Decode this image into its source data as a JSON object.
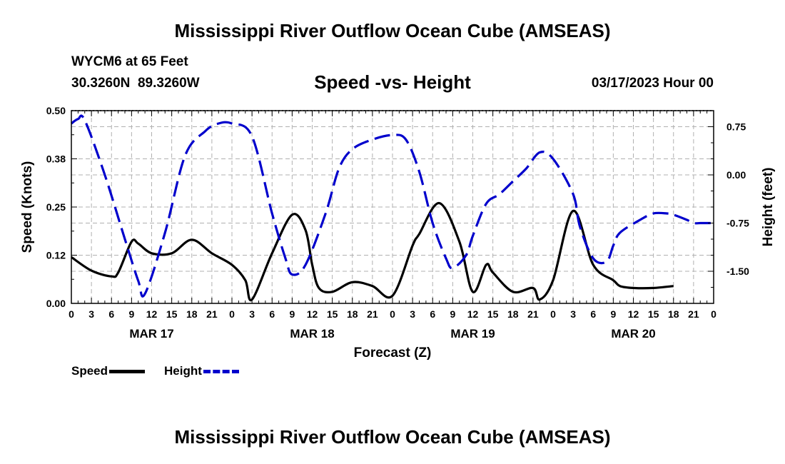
{
  "header": {
    "title": "Mississippi River Outflow Ocean Cube (AMSEAS)",
    "station": "WYCM6 at 65 Feet",
    "coords": "30.3260N  89.3260W",
    "subtitle": "Speed -vs- Height",
    "datetime": "03/17/2023 Hour 00"
  },
  "footer": {
    "title": "Mississippi River Outflow Ocean Cube (AMSEAS)"
  },
  "legend": {
    "speed": "Speed",
    "height": "Height"
  },
  "colors": {
    "speed": "#000000",
    "height": "#0000cc",
    "grid": "#b0b0b0"
  },
  "chart_data": {
    "type": "line",
    "xlabel": "Forecast (Z)",
    "ylabel_left": "Speed (Knots)",
    "ylabel_right": "Height (feet)",
    "x_range_hours": [
      0,
      96
    ],
    "ylim_left": [
      0,
      0.5
    ],
    "ylim_right": [
      -2.0,
      1.0
    ],
    "left_ticks": [
      "0.00",
      "0.12",
      "0.25",
      "0.38",
      "0.50"
    ],
    "left_tick_values": [
      0,
      0.125,
      0.25,
      0.375,
      0.5
    ],
    "right_ticks": [
      "0.75",
      "0.00",
      "-0.75",
      "-1.50"
    ],
    "right_tick_values": [
      0.75,
      0.0,
      -0.75,
      -1.5
    ],
    "x_tick_labels": [
      "0",
      "3",
      "6",
      "9",
      "12",
      "15",
      "18",
      "21",
      "0",
      "3",
      "6",
      "9",
      "12",
      "15",
      "18",
      "21",
      "0",
      "3",
      "6",
      "9",
      "12",
      "15",
      "18",
      "21",
      "0",
      "3",
      "6",
      "9",
      "12",
      "15",
      "18",
      "21",
      "0"
    ],
    "day_labels": [
      {
        "label": "MAR 17",
        "hour": 12
      },
      {
        "label": "MAR 18",
        "hour": 36
      },
      {
        "label": "MAR 19",
        "hour": 60
      },
      {
        "label": "MAR 20",
        "hour": 84
      }
    ],
    "grid": true,
    "series": [
      {
        "name": "Speed",
        "axis": "left",
        "style": "solid",
        "x": [
          0,
          3,
          6,
          7,
          9,
          10,
          12,
          15,
          18,
          21,
          24,
          26,
          27,
          30,
          33,
          35,
          36,
          37,
          39,
          42,
          45,
          48,
          51,
          52,
          55,
          58,
          60,
          62,
          63,
          66,
          69,
          70,
          72,
          75,
          78,
          81,
          82,
          84,
          87,
          90
        ],
        "values": [
          0.12,
          0.085,
          0.07,
          0.08,
          0.16,
          0.155,
          0.13,
          0.13,
          0.165,
          0.13,
          0.1,
          0.06,
          0.01,
          0.13,
          0.23,
          0.19,
          0.1,
          0.04,
          0.03,
          0.055,
          0.045,
          0.02,
          0.15,
          0.18,
          0.26,
          0.16,
          0.03,
          0.1,
          0.08,
          0.03,
          0.04,
          0.01,
          0.06,
          0.24,
          0.1,
          0.06,
          0.045,
          0.04,
          0.04,
          0.045
        ]
      },
      {
        "name": "Height",
        "axis": "right",
        "style": "dashed",
        "x": [
          0,
          1,
          2,
          5,
          8,
          10,
          11,
          14,
          17,
          20,
          22,
          24,
          27,
          30,
          32,
          33,
          35,
          38,
          40,
          42,
          45,
          48,
          50,
          52,
          54,
          56,
          57,
          59,
          60,
          62,
          64,
          66,
          68,
          70,
          72,
          75,
          76,
          78,
          80,
          81,
          82,
          85,
          87,
          89,
          90,
          92,
          93,
          94,
          95,
          96
        ],
        "values": [
          0.8,
          0.87,
          0.85,
          0.0,
          -1.0,
          -1.65,
          -1.85,
          -0.9,
          0.3,
          0.68,
          0.8,
          0.8,
          0.6,
          -0.6,
          -1.3,
          -1.55,
          -1.4,
          -0.6,
          0.1,
          0.4,
          0.55,
          0.62,
          0.55,
          0.05,
          -0.75,
          -1.3,
          -1.45,
          -1.25,
          -0.95,
          -0.45,
          -0.3,
          -0.1,
          0.1,
          0.35,
          0.25,
          -0.3,
          -0.8,
          -1.3,
          -1.35,
          -1.1,
          -0.9,
          -0.7,
          -0.6,
          -0.6,
          -0.62,
          -0.7,
          -0.75,
          -0.75,
          -0.75,
          -0.75
        ]
      }
    ]
  }
}
